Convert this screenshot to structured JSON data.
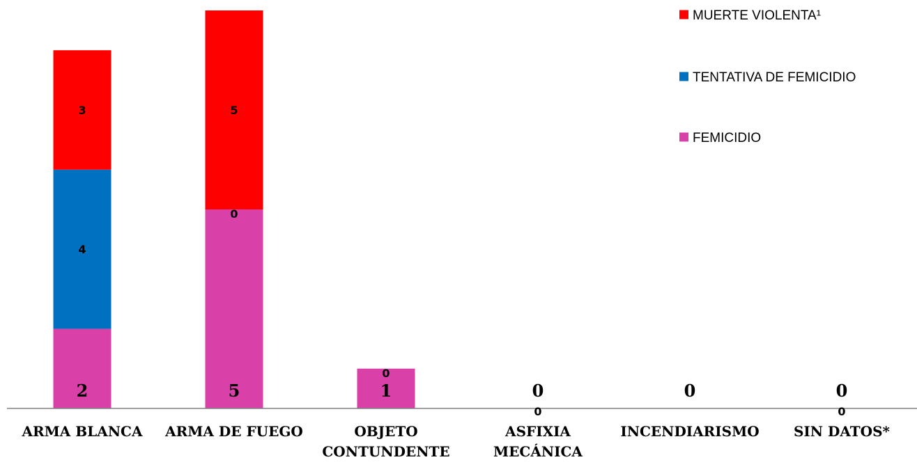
{
  "chart_data": {
    "type": "bar",
    "stacked": true,
    "categories": [
      "ARMA BLANCA",
      "ARMA DE FUEGO",
      "OBJETO CONTUNDENTE",
      "ASFIXIA MECÁNICA",
      "INCENDIARISMO",
      "SIN DATOS*"
    ],
    "series": [
      {
        "name": "FEMICIDIO",
        "color": "#d940a8",
        "values": [
          2,
          5,
          1,
          0,
          0,
          0
        ]
      },
      {
        "name": "TENTATIVA DE FEMICIDIO",
        "color": "#0070c0",
        "values": [
          4,
          0,
          null,
          null,
          null,
          null
        ]
      },
      {
        "name": "MUERTE VIOLENTA¹",
        "color": "#ff0000",
        "values": [
          3,
          5,
          0,
          0,
          null,
          0
        ]
      }
    ],
    "legend_position": "top-right",
    "legend_order": [
      "MUERTE VIOLENTA¹",
      "TENTATIVA DE FEMICIDIO",
      "FEMICIDIO"
    ],
    "grid": false
  }
}
